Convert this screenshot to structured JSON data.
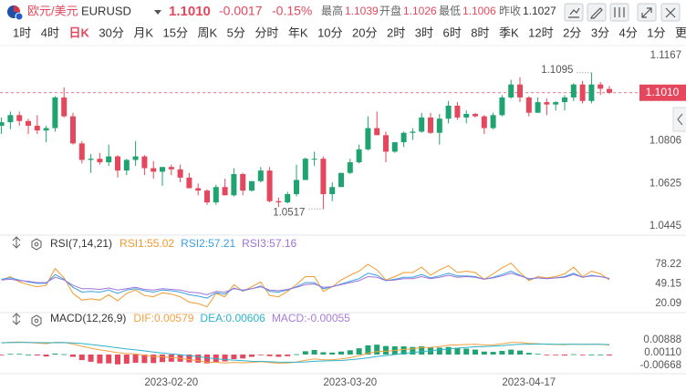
{
  "header": {
    "name_cn": "欧元/美元",
    "symbol": "EURUSD",
    "price": "1.1010",
    "change": "-0.0017",
    "change_percent": "-0.15%",
    "stats": [
      {
        "label": "最高",
        "value": "1.1039"
      },
      {
        "label": "开盘",
        "value": "1.1026"
      },
      {
        "label": "最低",
        "value": "1.1006"
      },
      {
        "label": "昨收",
        "value": "1.1027"
      }
    ]
  },
  "timeframes": {
    "items": [
      "1时",
      "4时",
      "日K",
      "30分",
      "月K",
      "15分",
      "周K",
      "5分",
      "分时",
      "年K",
      "10分",
      "20分",
      "2时",
      "3时",
      "6时",
      "8时",
      "季K",
      "12时",
      "2分",
      "3分",
      "4分",
      "1分"
    ],
    "active": "日K",
    "more": "更多"
  },
  "chart_data": [
    {
      "type": "candlestick",
      "categories": [
        null,
        null,
        null,
        null,
        null,
        null,
        null,
        null,
        null,
        null,
        null,
        null,
        null,
        null,
        null,
        null,
        null,
        null,
        null,
        "2023-02-20",
        null,
        null,
        null,
        null,
        null,
        null,
        null,
        null,
        null,
        null,
        null,
        null,
        null,
        null,
        null,
        null,
        null,
        null,
        null,
        "2023-03-20",
        null,
        null,
        null,
        null,
        null,
        null,
        null,
        null,
        null,
        null,
        null,
        null,
        null,
        null,
        null,
        null,
        null,
        null,
        null,
        "2023-04-17",
        null,
        null,
        null,
        null,
        null,
        null,
        null,
        null,
        null
      ],
      "open": [
        1.087,
        1.0885,
        1.0915,
        1.089,
        1.087,
        1.085,
        1.086,
        1.099,
        1.091,
        1.0795,
        1.0725,
        1.073,
        1.0715,
        1.074,
        1.068,
        1.0725,
        1.074,
        1.069,
        1.0675,
        1.0695,
        1.0685,
        1.065,
        1.0605,
        1.0595,
        1.0545,
        1.061,
        1.0575,
        1.0665,
        1.0595,
        1.0635,
        1.068,
        1.055,
        1.0545,
        1.058,
        1.064,
        1.073,
        1.073,
        1.058,
        1.061,
        1.067,
        1.0715,
        1.077,
        1.086,
        1.083,
        1.076,
        1.08,
        1.084,
        1.0845,
        1.0905,
        1.084,
        1.09,
        1.0955,
        1.0905,
        1.092,
        1.091,
        1.086,
        1.0915,
        1.099,
        1.1045,
        1.099,
        1.0925,
        1.097,
        1.096,
        1.097,
        1.099,
        1.1045,
        1.0975,
        1.1045,
        1.1026
      ],
      "high": [
        1.0905,
        1.093,
        1.093,
        1.09,
        1.0915,
        1.087,
        1.0995,
        1.1033,
        1.0925,
        1.0805,
        1.075,
        1.0755,
        1.079,
        1.0745,
        1.073,
        1.0805,
        1.0745,
        1.072,
        1.0695,
        1.0705,
        1.0705,
        1.067,
        1.0625,
        1.06,
        1.062,
        1.0645,
        1.069,
        1.067,
        1.0635,
        1.0695,
        1.0695,
        1.0565,
        1.059,
        1.0705,
        1.0735,
        1.076,
        1.074,
        1.063,
        1.067,
        1.073,
        1.079,
        1.091,
        1.093,
        1.0845,
        1.08,
        1.0845,
        1.086,
        1.0925,
        1.0925,
        1.092,
        1.0975,
        1.097,
        1.0935,
        1.0925,
        1.0915,
        1.0925,
        1.1,
        1.1065,
        1.1075,
        1.0995,
        1.099,
        1.0985,
        1.0975,
        1.1,
        1.105,
        1.106,
        1.1095,
        1.1055,
        1.1039
      ],
      "low": [
        1.0835,
        1.0855,
        1.087,
        1.0835,
        1.0835,
        1.08,
        1.0845,
        1.0905,
        1.079,
        1.071,
        1.067,
        1.0705,
        1.07,
        1.065,
        1.066,
        1.07,
        1.066,
        1.0645,
        1.0615,
        1.066,
        1.063,
        1.0605,
        1.0575,
        1.0535,
        1.0535,
        1.0575,
        1.057,
        1.0575,
        1.059,
        1.063,
        1.0545,
        1.0525,
        1.054,
        1.057,
        1.064,
        1.07,
        1.0517,
        1.055,
        1.061,
        1.0665,
        1.071,
        1.0765,
        1.083,
        1.0715,
        1.0755,
        1.078,
        1.081,
        1.084,
        1.0835,
        1.079,
        1.088,
        1.0895,
        1.088,
        1.0905,
        1.0835,
        1.0855,
        1.091,
        1.0985,
        1.097,
        1.091,
        1.0925,
        1.0915,
        1.0935,
        1.0935,
        1.0975,
        1.0965,
        1.0965,
        1.1,
        1.1006
      ],
      "close": [
        1.0885,
        1.0915,
        1.089,
        1.087,
        1.085,
        1.086,
        1.099,
        1.091,
        1.0795,
        1.0725,
        1.073,
        1.0715,
        1.074,
        1.068,
        1.0725,
        1.074,
        1.069,
        1.0675,
        1.0695,
        1.0685,
        1.065,
        1.0605,
        1.0595,
        1.0545,
        1.061,
        1.0575,
        1.0665,
        1.0595,
        1.0635,
        1.068,
        1.055,
        1.0545,
        1.058,
        1.064,
        1.073,
        1.073,
        1.058,
        1.061,
        1.067,
        1.0715,
        1.077,
        1.086,
        1.083,
        1.076,
        1.08,
        1.084,
        1.0845,
        1.0905,
        1.084,
        1.09,
        1.0955,
        1.0905,
        1.092,
        1.091,
        1.086,
        1.0915,
        1.099,
        1.1045,
        1.099,
        1.0925,
        1.097,
        1.096,
        1.097,
        1.099,
        1.1045,
        1.0975,
        1.1045,
        1.1027,
        1.101
      ],
      "up_color": "#1fa370",
      "down_color": "#e5485d",
      "ylim": [
        1.0406,
        1.121
      ],
      "yticks": [
        1.1167,
        1.0987,
        1.0806,
        1.0625,
        1.0445
      ],
      "grid": false,
      "last_price": {
        "value": 1.101,
        "label": "1.1010"
      },
      "annotations": [
        1.1095,
        1.0517
      ]
    },
    {
      "type": "line",
      "title": "RSI(7,14,21)",
      "ylim": [
        7.9,
        94.4
      ],
      "yticks": [
        78.22,
        49.15,
        20.09
      ],
      "grid": false,
      "series": [
        {
          "name": "RSI1:55.02",
          "color": "#f39a2e",
          "values": [
            55,
            60,
            52,
            48,
            45,
            47,
            72,
            58,
            35,
            25,
            27,
            25,
            33,
            24,
            35,
            40,
            32,
            30,
            36,
            34,
            30,
            22,
            20,
            15,
            35,
            30,
            48,
            38,
            45,
            52,
            32,
            30,
            38,
            48,
            60,
            60,
            38,
            45,
            55,
            62,
            68,
            78,
            70,
            55,
            60,
            66,
            66,
            74,
            62,
            70,
            76,
            66,
            68,
            66,
            56,
            64,
            73,
            80,
            66,
            54,
            60,
            58,
            60,
            64,
            74,
            60,
            68,
            64,
            55.02
          ]
        },
        {
          "name": "RSI2:57.21",
          "color": "#3a9fe3",
          "values": [
            56,
            58,
            55,
            52,
            50,
            50,
            63,
            56,
            44,
            37,
            38,
            37,
            40,
            35,
            40,
            42,
            39,
            37,
            40,
            39,
            37,
            33,
            31,
            28,
            36,
            34,
            43,
            39,
            42,
            46,
            38,
            37,
            40,
            45,
            51,
            51,
            42,
            45,
            49,
            53,
            57,
            65,
            62,
            54,
            56,
            59,
            59,
            63,
            58,
            61,
            65,
            61,
            61,
            60,
            56,
            59,
            63,
            68,
            62,
            56,
            58,
            57,
            58,
            60,
            65,
            59,
            62,
            60,
            57.21
          ]
        },
        {
          "name": "RSI3:57.16",
          "color": "#9d72d8",
          "values": [
            55,
            56,
            54,
            53,
            51,
            51,
            59,
            55,
            47,
            42,
            42,
            41,
            43,
            40,
            42,
            44,
            41,
            40,
            42,
            41,
            40,
            37,
            36,
            33,
            38,
            37,
            42,
            40,
            42,
            45,
            40,
            39,
            41,
            44,
            48,
            49,
            44,
            45,
            48,
            51,
            54,
            60,
            59,
            54,
            55,
            57,
            57,
            60,
            57,
            59,
            62,
            59,
            60,
            59,
            56,
            58,
            61,
            65,
            61,
            57,
            58,
            57,
            58,
            59,
            63,
            59,
            61,
            60,
            57.16
          ]
        }
      ]
    },
    {
      "type": "macd",
      "title": "MACD(12,26,9)",
      "ylim": [
        -0.01168,
        0.01611
      ],
      "yticks": [
        0.00888,
        {
          "value": 0.0011,
          "label": "0.00110"
        },
        -0.00668
      ],
      "grid": false,
      "up_color": "#1fa370",
      "down_color": "#e5485d",
      "series": [
        {
          "name": "DIF:0.00579",
          "color": "#f5a142",
          "values": [
            0.007,
            0.0075,
            0.0076,
            0.0074,
            0.007,
            0.0066,
            0.0075,
            0.0074,
            0.0064,
            0.005,
            0.0039,
            0.0028,
            0.0021,
            0.0011,
            0.0006,
            0.0003,
            -0.0004,
            -0.0011,
            -0.0014,
            -0.0018,
            -0.0023,
            -0.0031,
            -0.0038,
            -0.0047,
            -0.0048,
            -0.0052,
            -0.0048,
            -0.005,
            -0.0048,
            -0.0043,
            -0.0049,
            -0.0053,
            -0.0052,
            -0.0046,
            -0.0035,
            -0.0027,
            -0.0032,
            -0.0032,
            -0.0027,
            -0.0019,
            -0.0008,
            0.0008,
            0.0018,
            0.002,
            0.0025,
            0.0031,
            0.0035,
            0.0043,
            0.0044,
            0.0049,
            0.0057,
            0.0059,
            0.0061,
            0.0062,
            0.0058,
            0.0059,
            0.0065,
            0.0074,
            0.0074,
            0.0068,
            0.0066,
            0.0063,
            0.0061,
            0.006,
            0.0064,
            0.0061,
            0.0063,
            0.0062,
            0.00579
          ]
        },
        {
          "name": "DEA:0.00606",
          "color": "#2bb3c9",
          "values": [
            0.0072,
            0.0073,
            0.0074,
            0.0074,
            0.0073,
            0.0072,
            0.0072,
            0.0073,
            0.0071,
            0.0067,
            0.0061,
            0.0055,
            0.0048,
            0.0041,
            0.0034,
            0.0028,
            0.0022,
            0.0015,
            0.0009,
            0.0004,
            -0.0001,
            -0.0007,
            -0.0013,
            -0.002,
            -0.0025,
            -0.0031,
            -0.0034,
            -0.0038,
            -0.0041,
            -0.0042,
            -0.0044,
            -0.0046,
            -0.0047,
            -0.0047,
            -0.0045,
            -0.0041,
            -0.0039,
            -0.0038,
            -0.0036,
            -0.0032,
            -0.0027,
            -0.002,
            -0.0012,
            -0.0006,
            0,
            0.0006,
            0.0012,
            0.0018,
            0.0023,
            0.0028,
            0.0034,
            0.0039,
            0.0043,
            0.0047,
            0.0049,
            0.0051,
            0.0054,
            0.0059,
            0.0062,
            0.0063,
            0.0064,
            0.0064,
            0.0063,
            0.0063,
            0.0063,
            0.0063,
            0.0063,
            0.0062,
            0.00606
          ]
        },
        {
          "name": "MACD:-0.00055",
          "color": "#a77bdc",
          "kind": "bar",
          "values": [
            -0.0004,
            0.0004,
            0.0004,
            0,
            -0.0006,
            -0.0012,
            0.0006,
            0.0002,
            -0.0014,
            -0.0034,
            -0.0044,
            -0.0054,
            -0.0054,
            -0.006,
            -0.0056,
            -0.005,
            -0.0052,
            -0.0052,
            -0.0046,
            -0.0044,
            -0.0044,
            -0.0048,
            -0.005,
            -0.0054,
            -0.0046,
            -0.0042,
            -0.0028,
            -0.0024,
            -0.0014,
            -0.0002,
            -0.001,
            -0.0014,
            -0.001,
            0.0002,
            0.002,
            0.0028,
            0.0014,
            0.0012,
            0.0018,
            0.0026,
            0.0038,
            0.0056,
            0.006,
            0.0052,
            0.005,
            0.005,
            0.0046,
            0.005,
            0.0042,
            0.0042,
            0.0046,
            0.004,
            0.0036,
            0.003,
            0.0018,
            0.0016,
            0.0022,
            0.003,
            0.0024,
            0.001,
            0.0004,
            -0.0002,
            -0.0004,
            -0.0006,
            0.0002,
            -0.0004,
            0,
            0,
            -0.00055
          ]
        }
      ]
    }
  ]
}
